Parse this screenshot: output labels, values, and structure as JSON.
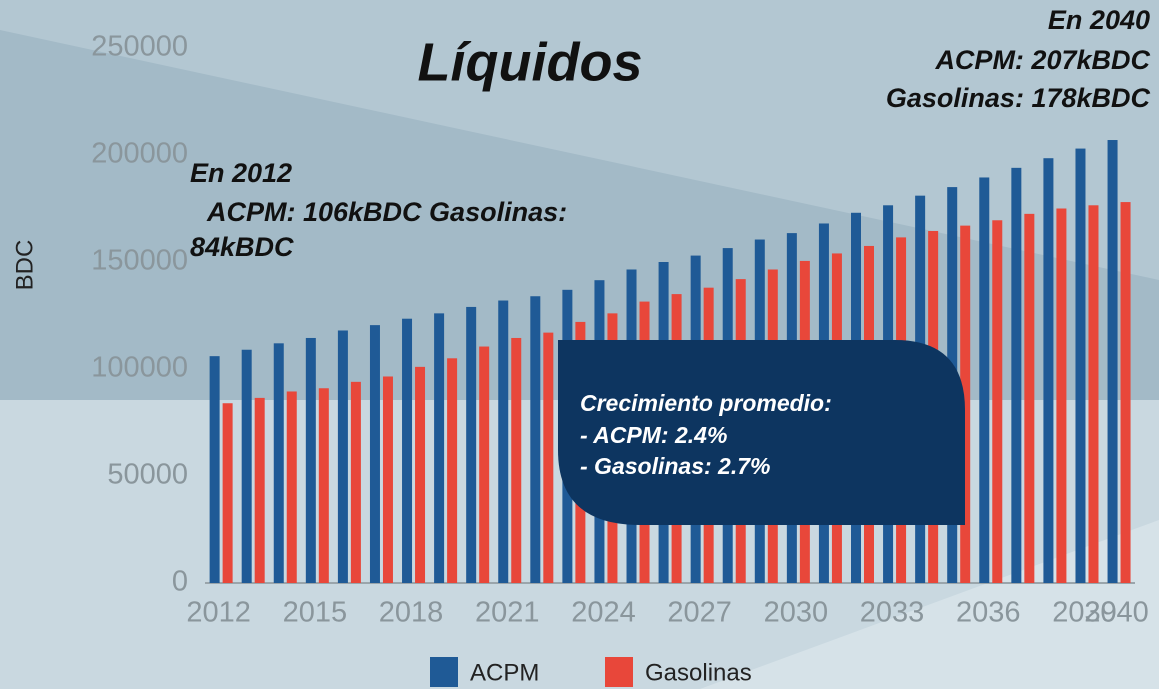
{
  "chart_data": {
    "type": "bar",
    "title": "Líquidos",
    "y_label": "BDC",
    "x": [
      2012,
      2013,
      2014,
      2015,
      2016,
      2017,
      2018,
      2019,
      2020,
      2021,
      2022,
      2023,
      2024,
      2025,
      2026,
      2027,
      2028,
      2029,
      2030,
      2031,
      2032,
      2033,
      2034,
      2035,
      2036,
      2037,
      2038,
      2039,
      2040
    ],
    "series": [
      {
        "name": "ACPM",
        "color": "#1f5a96",
        "values": [
          106000,
          109000,
          112000,
          114500,
          118000,
          120500,
          123500,
          126000,
          129000,
          132000,
          134000,
          137000,
          141500,
          146500,
          150000,
          153000,
          156500,
          160500,
          163500,
          168000,
          173000,
          176500,
          181000,
          185000,
          189500,
          194000,
          198500,
          203000,
          207000
        ]
      },
      {
        "name": "Gasolinas",
        "color": "#e8473a",
        "values": [
          84000,
          86500,
          89500,
          91000,
          94000,
          96500,
          101000,
          105000,
          110500,
          114500,
          117000,
          122000,
          126000,
          131500,
          135000,
          138000,
          142000,
          146500,
          150500,
          154000,
          157500,
          161500,
          164500,
          167000,
          169500,
          172500,
          175000,
          176500,
          178000
        ]
      }
    ],
    "xlim": [
      2011.7,
      2040.7
    ],
    "xticks": [
      2012,
      2015,
      2018,
      2021,
      2024,
      2027,
      2030,
      2033,
      2036,
      2039,
      2040
    ],
    "ylim": [
      0,
      250000
    ],
    "yticks": [
      0,
      50000,
      100000,
      150000,
      200000,
      250000
    ],
    "grid": false,
    "legend": "bottom",
    "annotations": [
      {
        "lines": [
          "En 2012",
          "ACPM: 106kBDC  Gasolinas:",
          "84kBDC"
        ]
      },
      {
        "lines": [
          "En 2040",
          "ACPM: 207kBDC",
          "Gasolinas: 178kBDC"
        ]
      },
      {
        "lines": [
          "Crecimiento promedio:",
          "- ACPM: 2.4%",
          "- Gasolinas: 2.7%"
        ]
      }
    ]
  }
}
